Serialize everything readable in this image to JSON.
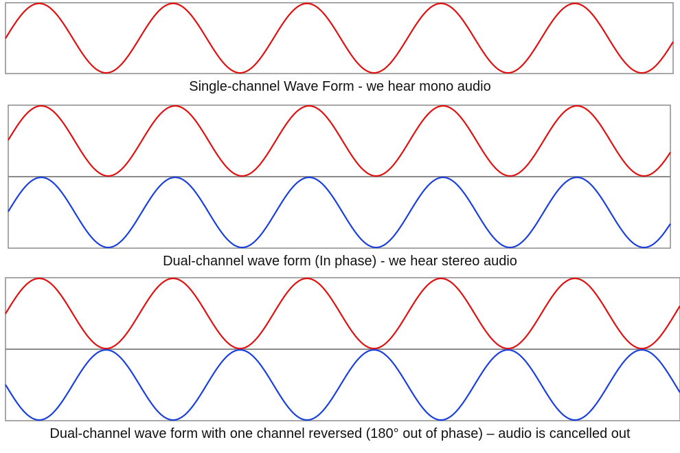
{
  "colors": {
    "left_channel": "#e01010",
    "right_channel": "#1a3fdc",
    "frame": "#8a8a8a"
  },
  "panels": [
    {
      "caption": "Single-channel Wave Form - we hear mono audio",
      "channels": [
        {
          "color": "#e01010",
          "phase_deg": 0
        }
      ]
    },
    {
      "caption": "Dual-channel wave form (In phase) - we hear stereo audio",
      "channels": [
        {
          "color": "#e01010",
          "phase_deg": 0
        },
        {
          "color": "#1a3fdc",
          "phase_deg": 0
        }
      ]
    },
    {
      "caption": "Dual-channel wave form with one channel reversed (180° out of phase) – audio is cancelled out",
      "channels": [
        {
          "color": "#e01010",
          "phase_deg": 0
        },
        {
          "color": "#1a3fdc",
          "phase_deg": 180
        }
      ]
    }
  ]
}
